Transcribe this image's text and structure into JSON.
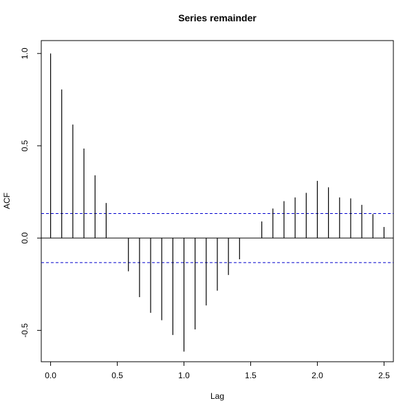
{
  "chart_data": {
    "type": "bar",
    "title": "Series  remainder",
    "xlabel": "Lag",
    "ylabel": "ACF",
    "xlim": [
      -0.07,
      2.57
    ],
    "ylim": [
      -0.67,
      1.07
    ],
    "x_ticks": [
      0.0,
      0.5,
      1.0,
      1.5,
      2.0,
      2.5
    ],
    "x_tick_labels": [
      "0.0",
      "0.5",
      "1.0",
      "1.5",
      "2.0",
      "2.5"
    ],
    "y_ticks": [
      -0.5,
      0.0,
      0.5,
      1.0
    ],
    "y_tick_labels": [
      "-0.5",
      "0.0",
      "0.5",
      "1.0"
    ],
    "confidence_bounds": [
      0.133,
      -0.133
    ],
    "zero_line": true,
    "grid": false,
    "series": [
      {
        "lag": [
          0.0,
          0.0833,
          0.1667,
          0.25,
          0.3333,
          0.4167,
          0.5,
          0.5833,
          0.6667,
          0.75,
          0.8333,
          0.9167,
          1.0,
          1.0833,
          1.1667,
          1.25,
          1.3333,
          1.4167,
          1.5,
          1.5833,
          1.6667,
          1.75,
          1.8333,
          1.9167,
          2.0,
          2.0833,
          2.1667,
          2.25,
          2.3333,
          2.4167,
          2.5
        ],
        "acf": [
          1.0,
          0.805,
          0.615,
          0.485,
          0.34,
          0.19,
          0.0,
          -0.18,
          -0.32,
          -0.405,
          -0.445,
          -0.525,
          -0.615,
          -0.495,
          -0.365,
          -0.285,
          -0.2,
          -0.115,
          0.0,
          0.09,
          0.16,
          0.2,
          0.22,
          0.245,
          0.31,
          0.275,
          0.22,
          0.215,
          0.18,
          0.13,
          0.06
        ],
        "color": "#000000"
      }
    ],
    "bound_color": "#0000cd"
  }
}
